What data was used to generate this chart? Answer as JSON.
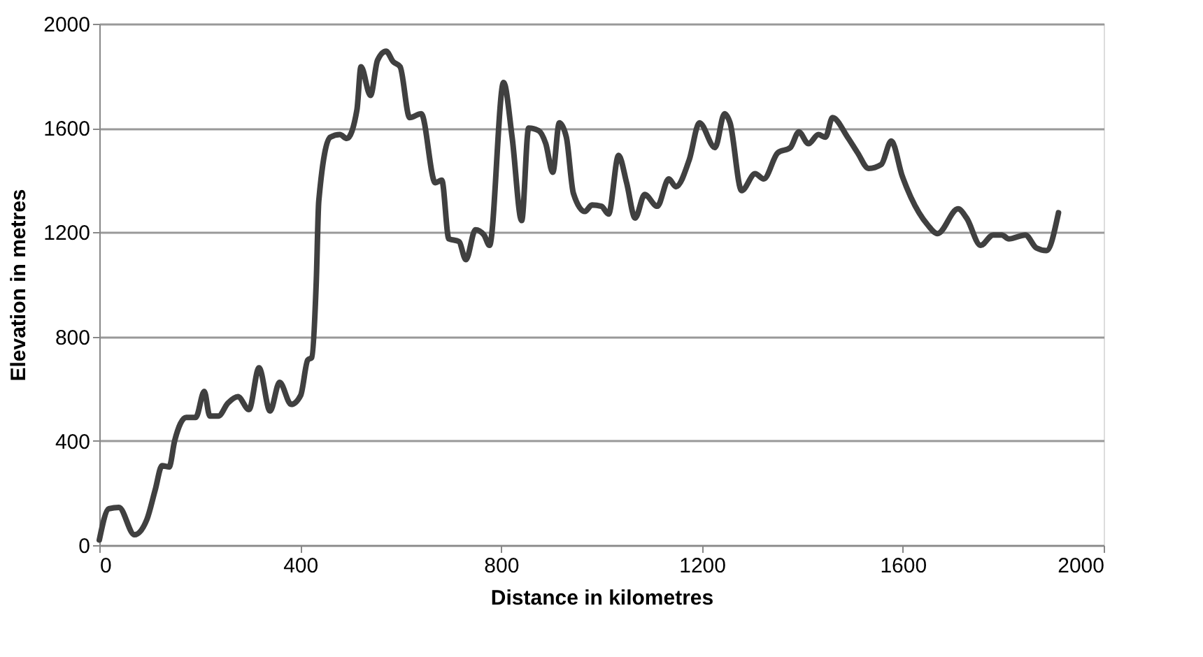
{
  "chart_data": {
    "type": "line",
    "xlabel": "Distance in kilometres",
    "ylabel": "Elevation in metres",
    "xlim": [
      0,
      2000
    ],
    "xticks": [
      0,
      400,
      800,
      1200,
      1600,
      2000
    ],
    "ylim": [
      0,
      2000
    ],
    "yticks": [
      0,
      400,
      800,
      1200,
      1600,
      2000
    ],
    "grid": "y",
    "marker": "none",
    "line_style": "solid",
    "series": [
      {
        "color": "#404040",
        "x": [
          0,
          19,
          39,
          70,
          95,
          111,
          125,
          139,
          150,
          173,
          192,
          209,
          220,
          237,
          256,
          276,
          298,
          318,
          340,
          359,
          382,
          401,
          415,
          423,
          432,
          437,
          460,
          479,
          493,
          513,
          521,
          540,
          554,
          571,
          585,
          599,
          618,
          641,
          669,
          682,
          696,
          716,
          730,
          749,
          766,
          777,
          805,
          822,
          841,
          855,
          875,
          889,
          903,
          916,
          930,
          944,
          967,
          981,
          1000,
          1014,
          1034,
          1050,
          1067,
          1086,
          1111,
          1134,
          1148,
          1175,
          1195,
          1226,
          1245,
          1256,
          1279,
          1306,
          1323,
          1351,
          1376,
          1393,
          1412,
          1432,
          1446,
          1460,
          1490,
          1510,
          1532,
          1557,
          1577,
          1599,
          1616,
          1649,
          1669,
          1710,
          1727,
          1755,
          1780,
          1797,
          1811,
          1844,
          1866,
          1886,
          1910
        ],
        "values": [
          20,
          140,
          145,
          40,
          100,
          210,
          305,
          300,
          400,
          490,
          490,
          590,
          495,
          495,
          545,
          570,
          520,
          680,
          515,
          625,
          540,
          575,
          710,
          720,
          1010,
          1320,
          1565,
          1575,
          1560,
          1670,
          1835,
          1725,
          1860,
          1895,
          1855,
          1835,
          1640,
          1655,
          1390,
          1400,
          1175,
          1165,
          1095,
          1210,
          1190,
          1150,
          1775,
          1565,
          1245,
          1600,
          1590,
          1540,
          1430,
          1620,
          1565,
          1350,
          1280,
          1305,
          1300,
          1270,
          1495,
          1390,
          1255,
          1345,
          1300,
          1405,
          1375,
          1480,
          1620,
          1525,
          1655,
          1620,
          1360,
          1425,
          1405,
          1505,
          1525,
          1585,
          1540,
          1575,
          1565,
          1640,
          1565,
          1505,
          1445,
          1460,
          1550,
          1415,
          1335,
          1230,
          1195,
          1290,
          1255,
          1150,
          1190,
          1190,
          1175,
          1190,
          1140,
          1130,
          1275
        ]
      }
    ]
  }
}
